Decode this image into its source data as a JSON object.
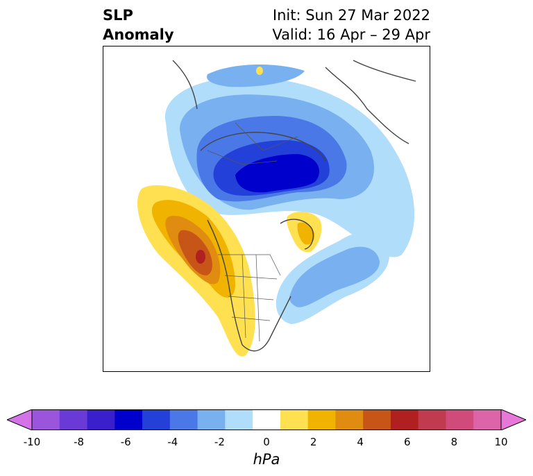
{
  "title": {
    "left_line1": "SLP",
    "left_line2": "Anomaly",
    "right_line1": "Init: Sun 27 Mar 2022",
    "right_line2": "Valid: 16 Apr – 29 Apr"
  },
  "colorbar": {
    "unit": "hPa",
    "tick_labels": [
      "-10",
      "-8",
      "-6",
      "-4",
      "-2",
      "0",
      "2",
      "4",
      "6",
      "8",
      "10"
    ],
    "colors": [
      "#d473e8",
      "#9b55dd",
      "#6a3ad6",
      "#3a20cc",
      "#0000cc",
      "#2340d8",
      "#4a78e6",
      "#78b0f0",
      "#b0ddfa",
      "#ffffff",
      "#ffe050",
      "#f0b400",
      "#e08c10",
      "#c85518",
      "#b02020",
      "#c03a50",
      "#d04a7a",
      "#dc64a8",
      "#e878d8"
    ]
  },
  "map": {
    "projection": "north-polar-stereographic",
    "features": [
      "negative-anomaly-arctic-eurasia",
      "positive-anomaly-north-pacific",
      "positive-anomaly-greenland",
      "negative-anomaly-north-atlantic"
    ]
  }
}
